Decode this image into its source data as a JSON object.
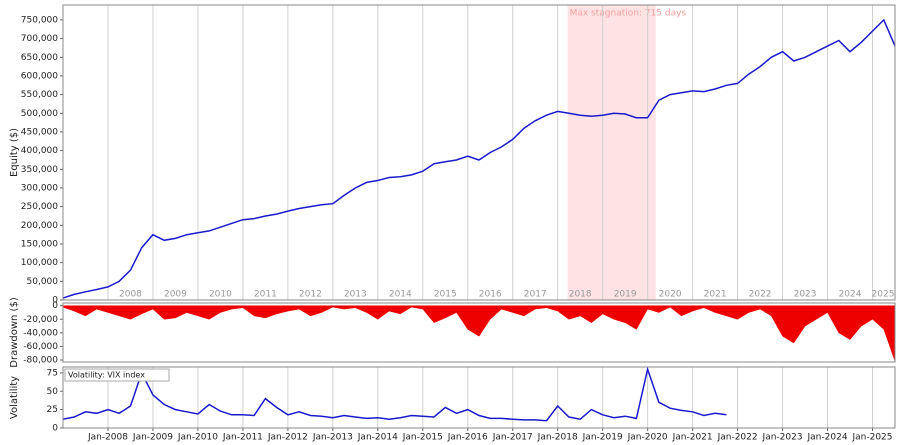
{
  "chart_data": [
    {
      "type": "line",
      "y_label": "Equity ($)",
      "color": "#1a1acc",
      "xlim": [
        2007,
        2025.5
      ],
      "ylim": [
        0,
        790000
      ],
      "yticks": [
        0,
        {
          "value": 50000,
          "label": "50,000"
        },
        {
          "value": 100000,
          "label": "100,000"
        },
        {
          "value": 150000,
          "label": "150,000"
        },
        {
          "value": 200000,
          "label": "200,000"
        },
        {
          "value": 250000,
          "label": "250,000"
        },
        {
          "value": 300000,
          "label": "300,000"
        },
        {
          "value": 350000,
          "label": "350,000"
        },
        {
          "value": 400000,
          "label": "400,000"
        },
        {
          "value": 450000,
          "label": "450,000"
        },
        {
          "value": 500000,
          "label": "500,000"
        },
        {
          "value": 550000,
          "label": "550,000"
        },
        {
          "value": 600000,
          "label": "600,000"
        },
        {
          "value": 650000,
          "label": "650,000"
        },
        {
          "value": 700000,
          "label": "700,000"
        },
        {
          "value": 750000,
          "label": "750,000"
        }
      ],
      "year_labels": [
        2008,
        2009,
        2010,
        2011,
        2012,
        2013,
        2014,
        2015,
        2016,
        2017,
        2018,
        2019,
        2020,
        2021,
        2022,
        2023,
        2024,
        2025
      ],
      "shade": {
        "label": "Max stagnation: 715 days",
        "x": [
          2018.22,
          2020.18
        ],
        "color": "#fde3e3"
      },
      "x": [
        2007,
        2007.25,
        2007.5,
        2007.75,
        2008,
        2008.25,
        2008.5,
        2008.75,
        2009,
        2009.25,
        2009.5,
        2009.75,
        2010,
        2010.25,
        2010.5,
        2010.75,
        2011,
        2011.25,
        2011.5,
        2011.75,
        2012,
        2012.25,
        2012.5,
        2012.75,
        2013,
        2013.25,
        2013.5,
        2013.75,
        2014,
        2014.25,
        2014.5,
        2014.75,
        2015,
        2015.25,
        2015.5,
        2015.75,
        2016,
        2016.25,
        2016.5,
        2016.75,
        2017,
        2017.25,
        2017.5,
        2017.75,
        2018,
        2018.25,
        2018.5,
        2018.75,
        2019,
        2019.25,
        2019.5,
        2019.75,
        2020,
        2020.25,
        2020.5,
        2020.75,
        2021,
        2021.25,
        2021.5,
        2021.75,
        2022,
        2022.25,
        2022.5,
        2022.75,
        2023,
        2023.25,
        2023.5,
        2023.75,
        2024,
        2024.25,
        2024.5,
        2024.75,
        2025,
        2025.25,
        2025.5
      ],
      "values": [
        5000,
        15000,
        22000,
        28000,
        35000,
        50000,
        80000,
        140000,
        175000,
        160000,
        165000,
        175000,
        180000,
        185000,
        195000,
        205000,
        215000,
        218000,
        225000,
        230000,
        238000,
        245000,
        250000,
        255000,
        258000,
        280000,
        300000,
        315000,
        320000,
        328000,
        330000,
        335000,
        345000,
        365000,
        370000,
        375000,
        385000,
        375000,
        395000,
        410000,
        430000,
        460000,
        480000,
        495000,
        505000,
        500000,
        495000,
        492000,
        495000,
        500000,
        498000,
        488000,
        488000,
        535000,
        550000,
        555000,
        560000,
        558000,
        565000,
        575000,
        580000,
        605000,
        625000,
        650000,
        665000,
        640000,
        650000,
        665000,
        680000,
        695000,
        665000,
        690000,
        720000,
        750000,
        680000
      ]
    },
    {
      "type": "area",
      "y_label": "Drawdown ($)",
      "color": "#ee0000",
      "xlim": [
        2007,
        2025.5
      ],
      "ylim": [
        -83000,
        4000
      ],
      "yticks": [
        0,
        {
          "value": -20000,
          "label": "-20,000"
        },
        {
          "value": -40000,
          "label": "-40,000"
        },
        {
          "value": -60000,
          "label": "-60,000"
        },
        {
          "value": -80000,
          "label": "-80,000"
        }
      ],
      "x": [
        2007,
        2007.25,
        2007.5,
        2007.75,
        2008,
        2008.25,
        2008.5,
        2008.75,
        2009,
        2009.25,
        2009.5,
        2009.75,
        2010,
        2010.25,
        2010.5,
        2010.75,
        2011,
        2011.25,
        2011.5,
        2011.75,
        2012,
        2012.25,
        2012.5,
        2012.75,
        2013,
        2013.25,
        2013.5,
        2013.75,
        2014,
        2014.25,
        2014.5,
        2014.75,
        2015,
        2015.25,
        2015.5,
        2015.75,
        2016,
        2016.25,
        2016.5,
        2016.75,
        2017,
        2017.25,
        2017.5,
        2017.75,
        2018,
        2018.25,
        2018.5,
        2018.75,
        2019,
        2019.25,
        2019.5,
        2019.75,
        2020,
        2020.25,
        2020.5,
        2020.75,
        2021,
        2021.25,
        2021.5,
        2021.75,
        2022,
        2022.25,
        2022.5,
        2022.75,
        2023,
        2023.25,
        2023.5,
        2023.75,
        2024,
        2024.25,
        2024.5,
        2024.75,
        2025,
        2025.25,
        2025.5
      ],
      "values": [
        -2000,
        -8000,
        -15000,
        -5000,
        -10000,
        -15000,
        -20000,
        -12000,
        -5000,
        -20000,
        -18000,
        -10000,
        -15000,
        -20000,
        -10000,
        -5000,
        -3000,
        -15000,
        -18000,
        -12000,
        -8000,
        -5000,
        -15000,
        -10000,
        -2000,
        -5000,
        -3000,
        -10000,
        -20000,
        -8000,
        -12000,
        -2000,
        -5000,
        -25000,
        -18000,
        -10000,
        -35000,
        -45000,
        -20000,
        -5000,
        -10000,
        -15000,
        -5000,
        -3000,
        -8000,
        -20000,
        -15000,
        -25000,
        -12000,
        -20000,
        -25000,
        -35000,
        -5000,
        -10000,
        -2000,
        -15000,
        -8000,
        -3000,
        -10000,
        -15000,
        -20000,
        -10000,
        -5000,
        -15000,
        -45000,
        -55000,
        -30000,
        -20000,
        -10000,
        -40000,
        -50000,
        -30000,
        -20000,
        -35000,
        -82000
      ]
    },
    {
      "type": "line",
      "y_label": "Volatility",
      "legend": "Volatility: VIX index",
      "color": "#1a1acc",
      "xlim": [
        2007,
        2025.5
      ],
      "ylim": [
        0,
        83
      ],
      "yticks": [
        0,
        25,
        50,
        75
      ],
      "xticks": [
        {
          "value": 2008,
          "label": "Jan-2008"
        },
        {
          "value": 2009,
          "label": "Jan-2009"
        },
        {
          "value": 2010,
          "label": "Jan-2010"
        },
        {
          "value": 2011,
          "label": "Jan-2011"
        },
        {
          "value": 2012,
          "label": "Jan-2012"
        },
        {
          "value": 2013,
          "label": "Jan-2013"
        },
        {
          "value": 2014,
          "label": "Jan-2014"
        },
        {
          "value": 2015,
          "label": "Jan-2015"
        },
        {
          "value": 2016,
          "label": "Jan-2016"
        },
        {
          "value": 2017,
          "label": "Jan-2017"
        },
        {
          "value": 2018,
          "label": "Jan-2018"
        },
        {
          "value": 2019,
          "label": "Jan-2019"
        },
        {
          "value": 2020,
          "label": "Jan-2020"
        },
        {
          "value": 2021,
          "label": "Jan-2021"
        },
        {
          "value": 2022,
          "label": "Jan-2022"
        },
        {
          "value": 2023,
          "label": "Jan-2023"
        },
        {
          "value": 2024,
          "label": "Jan-2024"
        },
        {
          "value": 2025,
          "label": "Jan-2025"
        }
      ],
      "x": [
        2007,
        2007.25,
        2007.5,
        2007.75,
        2008,
        2008.25,
        2008.5,
        2008.75,
        2009,
        2009.25,
        2009.5,
        2009.75,
        2010,
        2010.25,
        2010.5,
        2010.75,
        2011,
        2011.25,
        2011.5,
        2011.75,
        2012,
        2012.25,
        2012.5,
        2012.75,
        2013,
        2013.25,
        2013.5,
        2013.75,
        2014,
        2014.25,
        2014.5,
        2014.75,
        2015,
        2015.25,
        2015.5,
        2015.75,
        2016,
        2016.25,
        2016.5,
        2016.75,
        2017,
        2017.25,
        2017.5,
        2017.75,
        2018,
        2018.25,
        2018.5,
        2018.75,
        2019,
        2019.25,
        2019.5,
        2019.75,
        2020,
        2020.25,
        2020.5,
        2020.75,
        2021,
        2021.25,
        2021.5,
        2021.75
      ],
      "values": [
        12,
        15,
        22,
        20,
        25,
        20,
        30,
        75,
        45,
        32,
        25,
        22,
        19,
        32,
        23,
        18,
        18,
        17,
        40,
        28,
        18,
        22,
        17,
        16,
        14,
        17,
        15,
        13,
        14,
        12,
        14,
        17,
        16,
        15,
        28,
        20,
        25,
        17,
        13,
        13,
        12,
        11,
        11,
        10,
        30,
        15,
        12,
        25,
        18,
        14,
        16,
        13,
        80,
        35,
        27,
        24,
        22,
        17,
        20,
        18
      ]
    }
  ]
}
